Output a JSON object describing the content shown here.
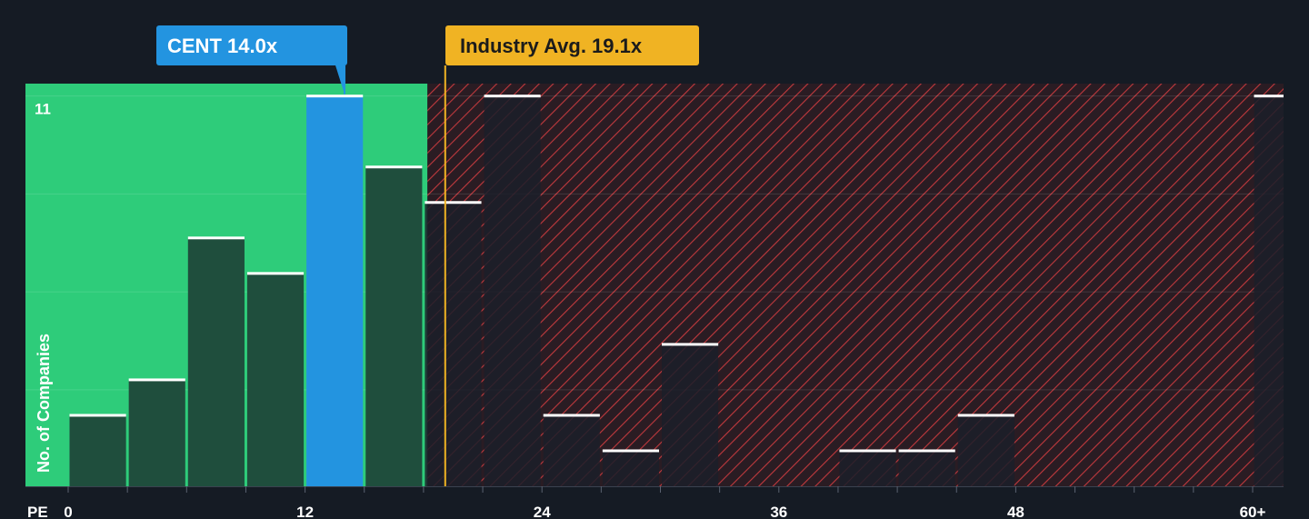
{
  "chart_data": {
    "type": "bar",
    "title": "",
    "xlabel": "PE",
    "ylabel": "No. of Companies",
    "xlim": [
      -3,
      60
    ],
    "ylim": [
      0,
      11.35
    ],
    "x_ticks": [
      {
        "value": 0,
        "label": "0"
      },
      {
        "value": 12,
        "label": "12"
      },
      {
        "value": 24,
        "label": "24"
      },
      {
        "value": 36,
        "label": "36"
      },
      {
        "value": 48,
        "label": "48"
      },
      {
        "value": 60,
        "label": "60+"
      }
    ],
    "y_ticks": [
      {
        "value": 11,
        "label": "11"
      }
    ],
    "bin_width": 3,
    "bins": [
      {
        "start": 0,
        "value": 2
      },
      {
        "start": 3,
        "value": 3
      },
      {
        "start": 6,
        "value": 7
      },
      {
        "start": 9,
        "value": 6
      },
      {
        "start": 12,
        "value": 11,
        "highlight": true
      },
      {
        "start": 15,
        "value": 9
      },
      {
        "start": 18,
        "value": 8
      },
      {
        "start": 21,
        "value": 11
      },
      {
        "start": 24,
        "value": 2
      },
      {
        "start": 27,
        "value": 1
      },
      {
        "start": 30,
        "value": 4
      },
      {
        "start": 33,
        "value": 0
      },
      {
        "start": 36,
        "value": 0
      },
      {
        "start": 39,
        "value": 1
      },
      {
        "start": 42,
        "value": 1
      },
      {
        "start": 45,
        "value": 2
      },
      {
        "start": 48,
        "value": 0
      },
      {
        "start": 51,
        "value": 0
      },
      {
        "start": 54,
        "value": 0
      },
      {
        "start": 57,
        "value": 0
      },
      {
        "start": 60,
        "value": 11
      }
    ],
    "fair_zone_end": 18.2,
    "company": {
      "label": "CENT 14.0x",
      "value": 14.0
    },
    "industry": {
      "label": "Industry Avg. 19.1x",
      "value": 19.1
    },
    "colors": {
      "background": "#151b24",
      "fair_zone": "#2ecc7a",
      "bar_in_zone": "#1f4e3d",
      "bar_out_zone": "#1b1f29",
      "highlight": "#2394e0",
      "hatch_bg": "#2a1c23",
      "hatch_line": "#c0393d",
      "industry": "#f0b323",
      "bar_cap": "#ffffff",
      "grid": "rgba(255,255,255,0.12)"
    }
  }
}
